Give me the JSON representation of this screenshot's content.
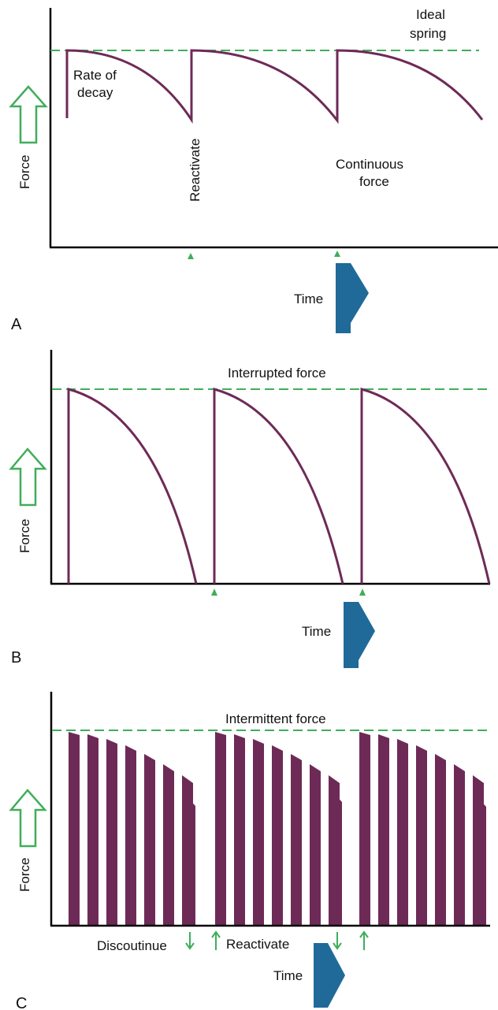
{
  "colors": {
    "curve": "#6e2a57",
    "bar": "#6e2a57",
    "dashed": "#3fae5a",
    "arrow_green": "#3fae5a",
    "time_arrow": "#1f6a99",
    "axis": "#000000"
  },
  "icons": {
    "force_arrow": "up-arrow-outline-icon",
    "time_arrow": "right-chevron-arrow-icon",
    "reactivate_marker": "up-triangle-icon",
    "discontinue_marker": "down-arrow-icon"
  },
  "panel_a": {
    "letter": "A",
    "y_label": "Force",
    "x_label": "Time",
    "ideal_line_1": "Ideal",
    "ideal_line_2": "spring",
    "rate_line_1": "Rate of",
    "rate_line_2": "decay",
    "reactivate": "Reactivate",
    "continuous_line_1": "Continuous",
    "continuous_line_2": "force"
  },
  "panel_b": {
    "letter": "B",
    "y_label": "Force",
    "x_label": "Time",
    "title": "Interrupted force"
  },
  "panel_c": {
    "letter": "C",
    "y_label": "Force",
    "x_label": "Time",
    "title": "Intermittent force",
    "discontinue": "Discoutinue",
    "reactivate": "Reactivate"
  }
}
